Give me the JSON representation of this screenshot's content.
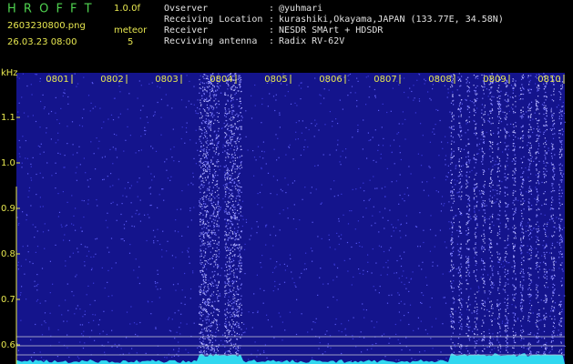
{
  "header": {
    "app": "H R O F F T",
    "version": "1.0.0f",
    "file": "2603230800.png",
    "mode": "meteor",
    "datetime": "26.03.23 08:00",
    "count": "5"
  },
  "info": [
    {
      "label": "Ovserver",
      "sep": ":",
      "value": "@yuhmari"
    },
    {
      "label": "Receiving Location",
      "sep": ":",
      "value": "kurashiki,Okayama,JAPAN (133.77E, 34.58N)"
    },
    {
      "label": "Receiver",
      "sep": ":",
      "value": "NESDR SMArt + HDSDR"
    },
    {
      "label": "Recviving antenna",
      "sep": ":",
      "value": "Radix RV-62V"
    }
  ],
  "spectrogram": {
    "y_unit": "kHz",
    "y_ticks": [
      "1.1",
      "1.0",
      "0.9",
      "0.8",
      "0.7",
      "0.6"
    ],
    "time_labels": [
      "0801",
      "0802",
      "0803",
      "0804",
      "0805",
      "0806",
      "0807",
      "0808",
      "0809",
      "0810"
    ]
  }
}
